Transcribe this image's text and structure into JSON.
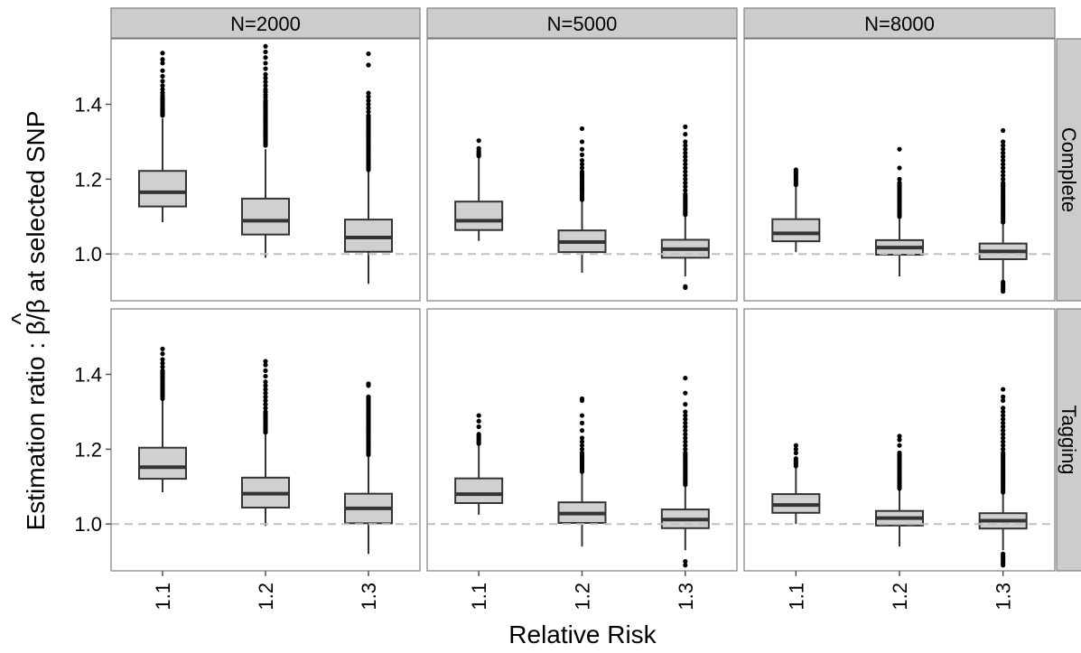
{
  "chart_data": {
    "type": "boxplot",
    "xlabel": "Relative Risk",
    "ylabel_prefix": "Estimation ratio : ",
    "ylabel_num": "β",
    "ylabel_hat": "^",
    "ylabel_suffix": "/β at selected SNP",
    "categories": [
      "1.1",
      "1.2",
      "1.3"
    ],
    "yticks": [
      1.0,
      1.2,
      1.4
    ],
    "ytick_labels": [
      "1.0",
      "1.2",
      "1.4"
    ],
    "ylim": [
      0.875,
      1.575
    ],
    "reference_line": 1.0,
    "grid": true,
    "colors": {
      "panel_bg": "#ffffff",
      "strip_bg": "#cccccc",
      "box_fill": "#d0d0d0",
      "box_stroke": "#333333",
      "grid": "#ebebeb",
      "reference_line": "#c0c0c0",
      "outlier": "#000000"
    },
    "col_facets": [
      "N=2000",
      "N=5000",
      "N=8000"
    ],
    "row_facets": [
      "Complete",
      "Tagging"
    ],
    "panels": [
      {
        "row": "Complete",
        "col": "N=2000",
        "boxes": [
          {
            "category": "1.1",
            "min": 1.085,
            "q1": 1.127,
            "median": 1.165,
            "q3": 1.222,
            "max": 1.362,
            "outliers": [
              1.37,
              1.372,
              1.375,
              1.377,
              1.38,
              1.382,
              1.385,
              1.388,
              1.39,
              1.393,
              1.396,
              1.4,
              1.404,
              1.408,
              1.413,
              1.418,
              1.424,
              1.431,
              1.44,
              1.45,
              1.462,
              1.475,
              1.49,
              1.51,
              1.52,
              1.537
            ]
          },
          {
            "category": "1.2",
            "min": 0.99,
            "q1": 1.052,
            "median": 1.089,
            "q3": 1.148,
            "max": 1.28,
            "outliers": [
              1.29,
              1.295,
              1.3,
              1.305,
              1.31,
              1.315,
              1.32,
              1.325,
              1.33,
              1.335,
              1.34,
              1.345,
              1.35,
              1.355,
              1.36,
              1.365,
              1.37,
              1.375,
              1.38,
              1.385,
              1.39,
              1.395,
              1.4,
              1.405,
              1.41,
              1.418,
              1.425,
              1.433,
              1.44,
              1.45,
              1.46,
              1.47,
              1.48,
              1.495,
              1.51,
              1.525,
              1.54,
              1.555
            ]
          },
          {
            "category": "1.3",
            "min": 0.92,
            "q1": 1.006,
            "median": 1.044,
            "q3": 1.092,
            "max": 1.22,
            "outliers": [
              1.225,
              1.23,
              1.235,
              1.24,
              1.245,
              1.25,
              1.255,
              1.26,
              1.265,
              1.27,
              1.275,
              1.28,
              1.285,
              1.29,
              1.295,
              1.3,
              1.305,
              1.31,
              1.315,
              1.32,
              1.325,
              1.33,
              1.335,
              1.34,
              1.345,
              1.35,
              1.355,
              1.36,
              1.365,
              1.37,
              1.38,
              1.39,
              1.4,
              1.41,
              1.42,
              1.43,
              1.505,
              1.535
            ]
          }
        ]
      },
      {
        "row": "Complete",
        "col": "N=5000",
        "boxes": [
          {
            "category": "1.1",
            "min": 1.035,
            "q1": 1.064,
            "median": 1.089,
            "q3": 1.14,
            "max": 1.258,
            "outliers": [
              1.262,
              1.266,
              1.27,
              1.275,
              1.282,
              1.303
            ]
          },
          {
            "category": "1.2",
            "min": 0.95,
            "q1": 1.005,
            "median": 1.032,
            "q3": 1.063,
            "max": 1.14,
            "outliers": [
              1.145,
              1.15,
              1.155,
              1.16,
              1.165,
              1.17,
              1.175,
              1.18,
              1.185,
              1.19,
              1.195,
              1.2,
              1.205,
              1.21,
              1.215,
              1.22,
              1.23,
              1.24,
              1.25,
              1.265,
              1.28,
              1.3,
              1.335
            ]
          },
          {
            "category": "1.3",
            "min": 0.94,
            "q1": 0.99,
            "median": 1.013,
            "q3": 1.038,
            "max": 1.1,
            "outliers": [
              0.91,
              0.913,
              1.105,
              1.11,
              1.115,
              1.12,
              1.125,
              1.13,
              1.135,
              1.14,
              1.145,
              1.15,
              1.155,
              1.16,
              1.17,
              1.18,
              1.19,
              1.2,
              1.21,
              1.22,
              1.23,
              1.24,
              1.25,
              1.26,
              1.27,
              1.28,
              1.29,
              1.3,
              1.32,
              1.34
            ]
          }
        ]
      },
      {
        "row": "Complete",
        "col": "N=8000",
        "boxes": [
          {
            "category": "1.1",
            "min": 1.005,
            "q1": 1.034,
            "median": 1.055,
            "q3": 1.093,
            "max": 1.18,
            "outliers": [
              1.185,
              1.19,
              1.195,
              1.2,
              1.205,
              1.21,
              1.215,
              1.22,
              1.225
            ]
          },
          {
            "category": "1.2",
            "min": 0.94,
            "q1": 0.998,
            "median": 1.017,
            "q3": 1.037,
            "max": 1.095,
            "outliers": [
              1.1,
              1.105,
              1.11,
              1.115,
              1.12,
              1.125,
              1.13,
              1.135,
              1.14,
              1.145,
              1.15,
              1.155,
              1.16,
              1.165,
              1.17,
              1.175,
              1.18,
              1.185,
              1.19,
              1.2,
              1.23,
              1.28
            ]
          },
          {
            "category": "1.3",
            "min": 0.93,
            "q1": 0.986,
            "median": 1.007,
            "q3": 1.028,
            "max": 1.08,
            "outliers": [
              0.9,
              0.905,
              0.91,
              0.915,
              0.92,
              0.925,
              1.085,
              1.09,
              1.095,
              1.1,
              1.105,
              1.11,
              1.115,
              1.12,
              1.125,
              1.13,
              1.135,
              1.14,
              1.145,
              1.15,
              1.155,
              1.16,
              1.165,
              1.17,
              1.175,
              1.18,
              1.185,
              1.19,
              1.2,
              1.21,
              1.22,
              1.23,
              1.24,
              1.25,
              1.26,
              1.27,
              1.28,
              1.29,
              1.3,
              1.33
            ]
          }
        ]
      },
      {
        "row": "Tagging",
        "col": "N=2000",
        "boxes": [
          {
            "category": "1.1",
            "min": 1.085,
            "q1": 1.121,
            "median": 1.152,
            "q3": 1.204,
            "max": 1.33,
            "outliers": [
              1.335,
              1.34,
              1.345,
              1.35,
              1.355,
              1.36,
              1.365,
              1.37,
              1.375,
              1.38,
              1.385,
              1.39,
              1.395,
              1.4,
              1.405,
              1.41,
              1.42,
              1.43,
              1.44,
              1.455,
              1.468
            ]
          },
          {
            "category": "1.2",
            "min": 0.995,
            "q1": 1.044,
            "median": 1.081,
            "q3": 1.124,
            "max": 1.24,
            "outliers": [
              1.245,
              1.25,
              1.255,
              1.26,
              1.265,
              1.27,
              1.275,
              1.28,
              1.285,
              1.29,
              1.295,
              1.3,
              1.31,
              1.32,
              1.33,
              1.34,
              1.35,
              1.36,
              1.37,
              1.38,
              1.395,
              1.41,
              1.425,
              1.435
            ]
          },
          {
            "category": "1.3",
            "min": 0.92,
            "q1": 1.002,
            "median": 1.042,
            "q3": 1.081,
            "max": 1.18,
            "outliers": [
              1.185,
              1.19,
              1.195,
              1.2,
              1.205,
              1.21,
              1.215,
              1.22,
              1.225,
              1.23,
              1.235,
              1.24,
              1.245,
              1.25,
              1.255,
              1.26,
              1.265,
              1.27,
              1.275,
              1.28,
              1.285,
              1.29,
              1.295,
              1.3,
              1.305,
              1.31,
              1.315,
              1.32,
              1.325,
              1.33,
              1.335,
              1.34,
              1.37,
              1.375
            ]
          }
        ]
      },
      {
        "row": "Tagging",
        "col": "N=5000",
        "boxes": [
          {
            "category": "1.1",
            "min": 1.025,
            "q1": 1.056,
            "median": 1.08,
            "q3": 1.122,
            "max": 1.21,
            "outliers": [
              1.215,
              1.22,
              1.225,
              1.23,
              1.235,
              1.24,
              1.26,
              1.275,
              1.29
            ]
          },
          {
            "category": "1.2",
            "min": 0.94,
            "q1": 1.003,
            "median": 1.028,
            "q3": 1.058,
            "max": 1.135,
            "outliers": [
              1.14,
              1.145,
              1.15,
              1.155,
              1.16,
              1.165,
              1.17,
              1.175,
              1.18,
              1.185,
              1.19,
              1.2,
              1.21,
              1.22,
              1.23,
              1.25,
              1.27,
              1.29,
              1.33,
              1.335
            ]
          },
          {
            "category": "1.3",
            "min": 0.93,
            "q1": 0.989,
            "median": 1.012,
            "q3": 1.039,
            "max": 1.1,
            "outliers": [
              0.89,
              0.9,
              1.105,
              1.11,
              1.115,
              1.12,
              1.125,
              1.13,
              1.135,
              1.14,
              1.145,
              1.15,
              1.155,
              1.16,
              1.165,
              1.17,
              1.175,
              1.18,
              1.185,
              1.19,
              1.2,
              1.21,
              1.22,
              1.23,
              1.24,
              1.25,
              1.26,
              1.27,
              1.28,
              1.29,
              1.3,
              1.32,
              1.35,
              1.39
            ]
          }
        ]
      },
      {
        "row": "Tagging",
        "col": "N=8000",
        "boxes": [
          {
            "category": "1.1",
            "min": 1.0,
            "q1": 1.03,
            "median": 1.051,
            "q3": 1.08,
            "max": 1.15,
            "outliers": [
              1.155,
              1.16,
              1.165,
              1.17,
              1.175,
              1.19,
              1.2,
              1.21
            ]
          },
          {
            "category": "1.2",
            "min": 0.94,
            "q1": 0.996,
            "median": 1.016,
            "q3": 1.035,
            "max": 1.09,
            "outliers": [
              1.095,
              1.1,
              1.105,
              1.11,
              1.115,
              1.12,
              1.125,
              1.13,
              1.135,
              1.14,
              1.145,
              1.15,
              1.155,
              1.16,
              1.165,
              1.17,
              1.175,
              1.18,
              1.185,
              1.19,
              1.21,
              1.225,
              1.235
            ]
          },
          {
            "category": "1.3",
            "min": 0.93,
            "q1": 0.988,
            "median": 1.009,
            "q3": 1.029,
            "max": 1.08,
            "outliers": [
              0.89,
              0.895,
              0.9,
              0.905,
              0.91,
              0.915,
              0.92,
              1.085,
              1.09,
              1.095,
              1.1,
              1.105,
              1.11,
              1.115,
              1.12,
              1.125,
              1.13,
              1.135,
              1.14,
              1.145,
              1.15,
              1.155,
              1.16,
              1.165,
              1.17,
              1.175,
              1.18,
              1.185,
              1.19,
              1.2,
              1.21,
              1.22,
              1.23,
              1.24,
              1.25,
              1.26,
              1.27,
              1.28,
              1.29,
              1.3,
              1.31,
              1.33,
              1.34,
              1.36
            ]
          }
        ]
      }
    ]
  }
}
